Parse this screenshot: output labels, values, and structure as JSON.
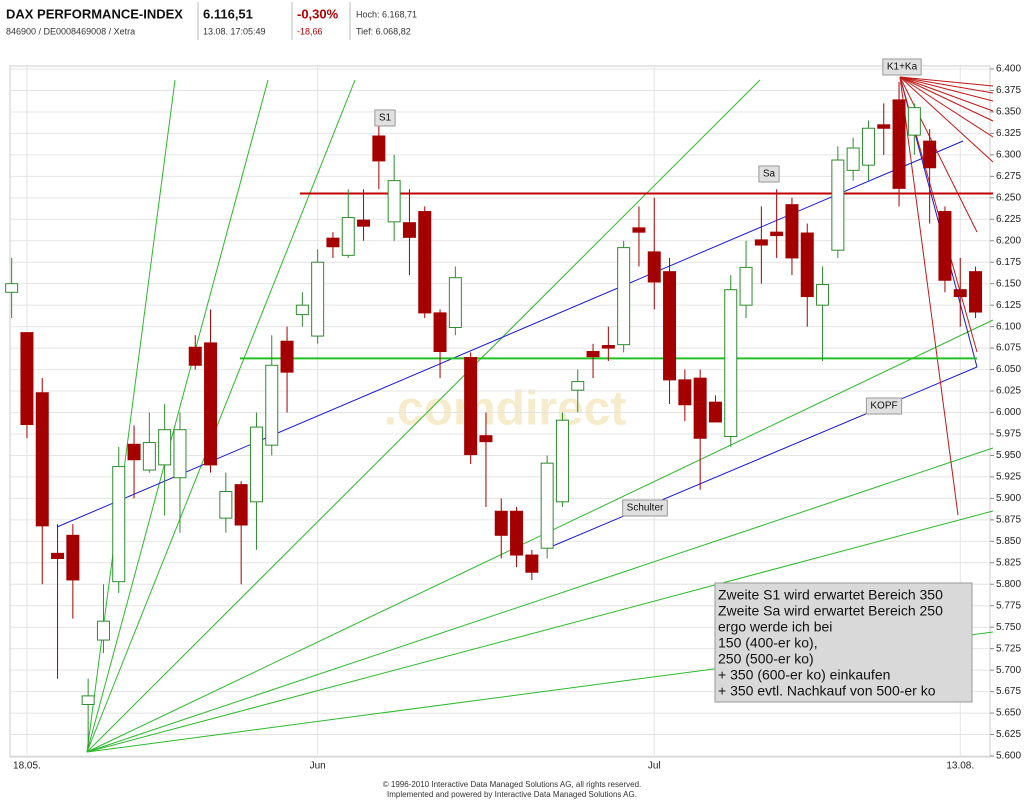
{
  "header": {
    "title": "DAX PERFORMANCE-INDEX",
    "subtitle": "846900 / DE0008469008 / Xetra",
    "price": "6.116,51",
    "time": "13.08. 17:05:49",
    "change_pct": "-0,30%",
    "change_abs": "-18,66",
    "high": "Hoch: 6.168,71",
    "low": "Tief: 6.068,82"
  },
  "chart_data": {
    "type": "candlestick",
    "categories": [
      null,
      "18.05.",
      null,
      null,
      null,
      null,
      null,
      null,
      null,
      null,
      null,
      null,
      null,
      null,
      null,
      null,
      null,
      null,
      null,
      null,
      "Jun",
      null,
      null,
      null,
      null,
      null,
      null,
      null,
      null,
      null,
      null,
      null,
      null,
      null,
      null,
      null,
      null,
      null,
      null,
      null,
      null,
      null,
      "Jul",
      null,
      null,
      null,
      null,
      null,
      null,
      null,
      null,
      null,
      null,
      null,
      null,
      null,
      null,
      null,
      null,
      null,
      null,
      null,
      "13.08.",
      null
    ],
    "open": [
      6140,
      6093,
      6023,
      5836,
      5857,
      5660,
      5735,
      5803,
      5963,
      5933,
      5939,
      5924,
      6076,
      6081,
      5877,
      5916,
      5896,
      5962,
      6083,
      6114,
      6089,
      6203,
      6183,
      6224,
      6322,
      6222,
      6221,
      6234,
      6116,
      6099,
      6064,
      5973,
      5885,
      5885,
      5834,
      5842,
      5896,
      6026,
      6071,
      6078,
      6079,
      6215,
      6187,
      6164,
      6038,
      6040,
      6012,
      5972,
      6125,
      6201,
      6210,
      6242,
      6209,
      6125,
      6189,
      6282,
      6288,
      6335,
      6364,
      6323,
      6316,
      6234,
      6143,
      6164
    ],
    "high": [
      6180,
      6093,
      6040,
      5870,
      5870,
      5690,
      5800,
      5960,
      5985,
      6000,
      6010,
      6000,
      6090,
      6120,
      5930,
      5920,
      6000,
      6090,
      6100,
      6140,
      6190,
      6210,
      6260,
      6260,
      6340,
      6300,
      6260,
      6240,
      6120,
      6170,
      6070,
      6000,
      5900,
      5890,
      5840,
      5950,
      6000,
      6050,
      6080,
      6100,
      6200,
      6240,
      6250,
      6180,
      6050,
      6050,
      6020,
      6160,
      6200,
      6240,
      6260,
      6250,
      6220,
      6170,
      6310,
      6320,
      6340,
      6360,
      6385,
      6360,
      6330,
      6240,
      6180,
      6170
    ],
    "low": [
      6110,
      5970,
      5800,
      5690,
      5760,
      5610,
      5720,
      5790,
      5900,
      5930,
      5880,
      5860,
      6050,
      5930,
      5860,
      5800,
      5840,
      5950,
      6000,
      6100,
      6080,
      6180,
      6180,
      6200,
      6260,
      6200,
      6160,
      6110,
      6040,
      6090,
      5940,
      5890,
      5830,
      5820,
      5805,
      5830,
      5890,
      6000,
      6040,
      6060,
      6070,
      6170,
      6120,
      6010,
      5990,
      5910,
      5990,
      5960,
      6110,
      6150,
      6180,
      6160,
      6100,
      6060,
      6180,
      6270,
      6270,
      6300,
      6240,
      6300,
      6220,
      6140,
      6100,
      6110
    ],
    "close": [
      6150,
      5986,
      5868,
      5830,
      5805,
      5670,
      5757,
      5937,
      5945,
      5965,
      5980,
      5980,
      6055,
      5939,
      5908,
      5869,
      5983,
      6055,
      6047,
      6125,
      6175,
      6193,
      6227,
      6217,
      6293,
      6270,
      6204,
      6116,
      6071,
      6157,
      5951,
      5966,
      5857,
      5834,
      5814,
      5941,
      5991,
      6036,
      6065,
      6075,
      6192,
      6210,
      6152,
      6038,
      6009,
      5970,
      5989,
      6143,
      6169,
      6195,
      6206,
      6180,
      6135,
      6149,
      6294,
      6308,
      6331,
      6331,
      6261,
      6355,
      6285,
      6154,
      6135,
      6117
    ],
    "up_color": "#2e8b2e",
    "down_color": "#a50000",
    "ylim": [
      5600,
      6400
    ],
    "yticks": [
      {
        "value": 5600,
        "label": "5.600"
      },
      {
        "value": 5625,
        "label": "5.625"
      },
      {
        "value": 5650,
        "label": "5.650"
      },
      {
        "value": 5675,
        "label": "5.675"
      },
      {
        "value": 5700,
        "label": "5.700"
      },
      {
        "value": 5725,
        "label": "5.725"
      },
      {
        "value": 5750,
        "label": "5.750"
      },
      {
        "value": 5775,
        "label": "5.775"
      },
      {
        "value": 5800,
        "label": "5.800"
      },
      {
        "value": 5825,
        "label": "5.825"
      },
      {
        "value": 5850,
        "label": "5.850"
      },
      {
        "value": 5875,
        "label": "5.875"
      },
      {
        "value": 5900,
        "label": "5.900"
      },
      {
        "value": 5925,
        "label": "5.925"
      },
      {
        "value": 5950,
        "label": "5.950"
      },
      {
        "value": 5975,
        "label": "5.975"
      },
      {
        "value": 6000,
        "label": "6.000"
      },
      {
        "value": 6025,
        "label": "6.025"
      },
      {
        "value": 6050,
        "label": "6.050"
      },
      {
        "value": 6075,
        "label": "6.075"
      },
      {
        "value": 6100,
        "label": "6.100"
      },
      {
        "value": 6125,
        "label": "6.125"
      },
      {
        "value": 6150,
        "label": "6.150"
      },
      {
        "value": 6175,
        "label": "6.175"
      },
      {
        "value": 6200,
        "label": "6.200"
      },
      {
        "value": 6225,
        "label": "6.225"
      },
      {
        "value": 6250,
        "label": "6.250"
      },
      {
        "value": 6275,
        "label": "6.275"
      },
      {
        "value": 6300,
        "label": "6.300"
      },
      {
        "value": 6325,
        "label": "6.325"
      },
      {
        "value": 6350,
        "label": "6.350"
      },
      {
        "value": 6375,
        "label": "6.375"
      },
      {
        "value": 6400,
        "label": "6.400"
      }
    ],
    "grid": true,
    "hlines": [
      {
        "value": 6255,
        "color": "#c00000"
      },
      {
        "value": 6063,
        "color": "#22c022"
      }
    ],
    "annotations": [
      "S1",
      "Sa",
      "K1+Ka",
      "KOPF",
      "Schulter"
    ],
    "note_lines": [
      "Zweite S1 wird erwartet Bereich 350",
      "Zweite Sa wird erwartet Bereich 250",
      "ergo werde ich bei",
      "150 (400-er ko),",
      "250 (500-er ko)",
      "+ 350 (600-er ko) einkaufen",
      "+ 350 evtl. Nachkauf von 500-er ko"
    ],
    "watermark": ".comdirect"
  },
  "footer": [
    "© 1996-2010 Interactive Data Managed Solutions AG, all rights reserved.",
    "Implemented and powered by Interactive Data Managed Solutions AG."
  ]
}
